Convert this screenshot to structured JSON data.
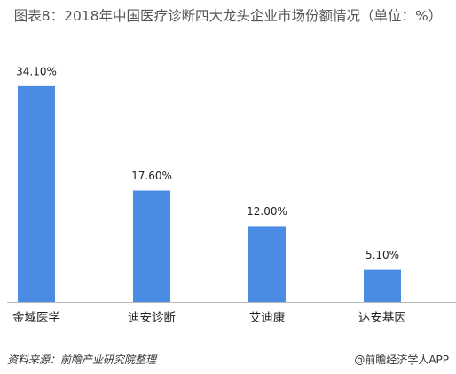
{
  "chart_data": {
    "type": "bar",
    "title": "图表8：2018年中国医疗诊断四大龙头企业市场份额情况（单位：%）",
    "categories": [
      "金域医学",
      "迪安诊断",
      "艾迪康",
      "达安基因"
    ],
    "values": [
      34.1,
      17.6,
      12.0,
      5.1
    ],
    "value_labels": [
      "34.10%",
      "17.60%",
      "12.00%",
      "5.10%"
    ],
    "color": "#4a8be3",
    "source": "资料来源：前瞻产业研究院整理",
    "brand": "@前瞻经济学人APP"
  }
}
